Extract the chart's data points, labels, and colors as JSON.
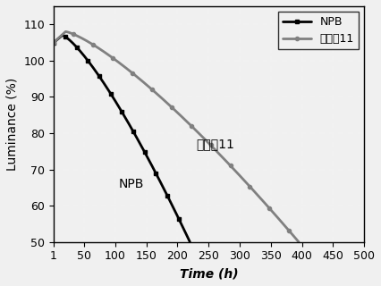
{
  "title": "",
  "xlabel": "Time (h)",
  "ylabel": "Luminance (%)",
  "xlim": [
    1,
    500
  ],
  "ylim": [
    50,
    115
  ],
  "xticks": [
    1,
    50,
    100,
    150,
    200,
    250,
    300,
    350,
    400,
    450,
    500
  ],
  "yticks": [
    50,
    60,
    70,
    80,
    90,
    100,
    110
  ],
  "npb_label": "NPB",
  "compound_label": "化合牨11",
  "npb_annotation": "NPB",
  "compound_annotation": "化合牨11",
  "npb_color": "#000000",
  "compound_color": "#808080",
  "background_color": "#f0f0f0",
  "plot_bg_color": "#f0f0f0",
  "legend_fontsize": 9,
  "axis_fontsize": 10,
  "tick_fontsize": 9,
  "npb_end_t": 220,
  "compound_end_t": 395
}
